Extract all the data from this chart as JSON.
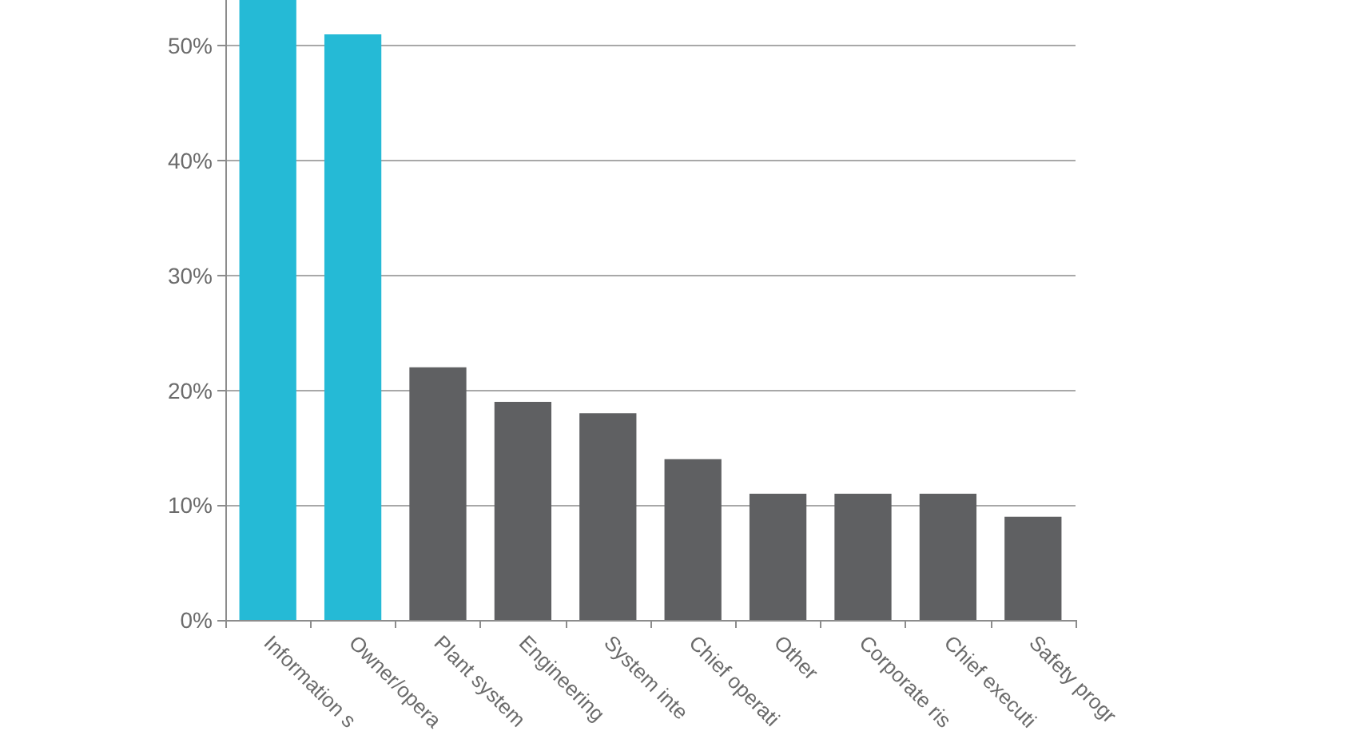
{
  "chart_data": {
    "type": "bar",
    "categories": [
      "Information s",
      "Owner/opera",
      "Plant system",
      "Engineering",
      "System inte",
      "Chief operati",
      "Other",
      "Corporate ris",
      "Chief executi",
      "Safety progr"
    ],
    "values": [
      54,
      51,
      22,
      19,
      18,
      14,
      11,
      11,
      11,
      9
    ],
    "colors": [
      "#25bad6",
      "#25bad6",
      "#5f6062",
      "#5f6062",
      "#5f6062",
      "#5f6062",
      "#5f6062",
      "#5f6062",
      "#5f6062",
      "#5f6062"
    ],
    "ylim": [
      0,
      54
    ],
    "yticks": [
      {
        "value": 0,
        "label": "0%"
      },
      {
        "value": 10,
        "label": "10%"
      },
      {
        "value": 20,
        "label": "20%"
      },
      {
        "value": 30,
        "label": "30%"
      },
      {
        "value": 40,
        "label": "40%"
      },
      {
        "value": 50,
        "label": "50%"
      }
    ],
    "grid": "y"
  }
}
